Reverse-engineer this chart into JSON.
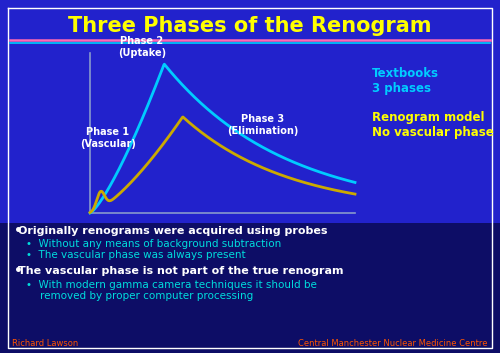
{
  "title": "Three Phases of the Renogram",
  "title_color": "#FFFF00",
  "title_fontsize": 15,
  "bg_color": "#2222CC",
  "bg_bottom_color": "#0A0A5A",
  "separator_pink": "#FF69B4",
  "separator_cyan": "#00CCFF",
  "cyan_curve_color": "#00CCFF",
  "yellow_curve_color": "#CCAA00",
  "axes_color": "#8899CC",
  "phase2_label": "Phase 2\n(Uptake)",
  "phase1_label": "Phase 1\n(Vascular)",
  "phase3_label": "Phase 3\n(Elimination)",
  "textbooks_text": "Textbooks\n3 phases",
  "renogram_text": "Renogram model\nNo vascular phase",
  "textbooks_color": "#00CCFF",
  "renogram_color": "#FFFF00",
  "label_color": "#FFFFFF",
  "bullet_color": "#FFFFFF",
  "sub_bullet_color": "#00DDDD",
  "footer_color": "#FF5500",
  "footer_left": "Richard Lawson",
  "footer_right": "Central Manchester Nuclear Medicine Centre",
  "bullet1": "Originally renograms were acquired using probes",
  "sub1a": "Without any means of background subtraction",
  "sub1b": "The vascular phase was always present",
  "bullet2": "The vascular phase is not part of the true renogram",
  "sub2a": "With modern gamma camera techniques it should be",
  "sub2b": "removed by proper computer processing"
}
